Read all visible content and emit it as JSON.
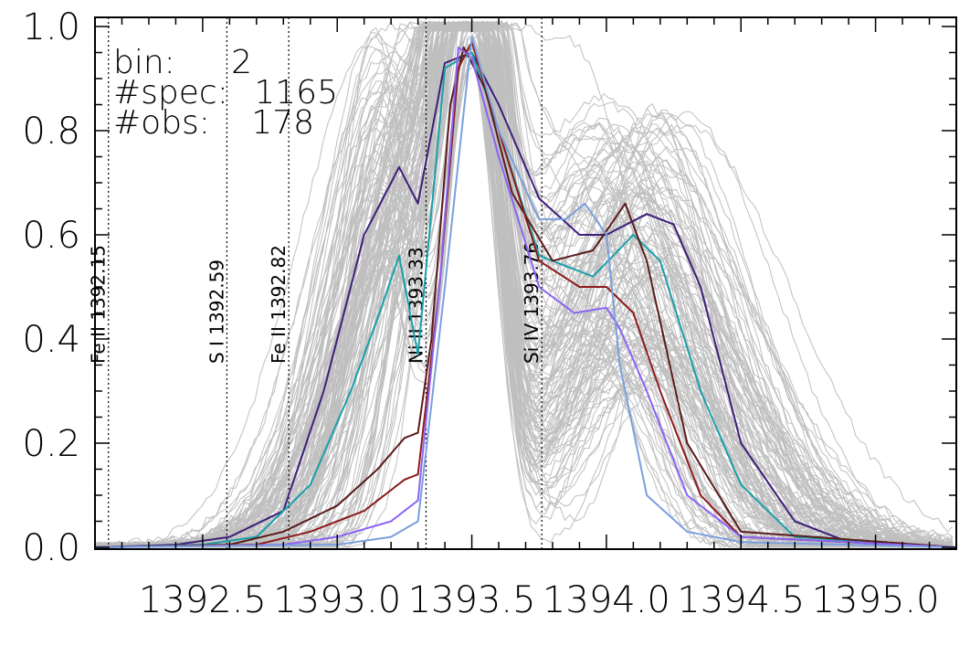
{
  "info": {
    "bin_label": "bin:",
    "bin_value": "2",
    "spec_label": "#spec:",
    "spec_value": "1165",
    "obs_label": "#obs:",
    "obs_value": "178"
  },
  "chart_data": {
    "type": "line",
    "title": "",
    "xlabel": "",
    "ylabel": "",
    "xlim": [
      1392.1,
      1395.3
    ],
    "ylim": [
      0.0,
      1.0
    ],
    "x_ticks": [
      1392.5,
      1393.0,
      1393.5,
      1394.0,
      1394.5,
      1395.0
    ],
    "x_tick_labels": [
      "1392.5",
      "1393.0",
      "1393.5",
      "1394.0",
      "1394.5",
      "1395.0"
    ],
    "y_ticks": [
      0.0,
      0.2,
      0.4,
      0.6,
      0.8,
      1.0
    ],
    "y_tick_labels": [
      "0.0",
      "0.2",
      "0.4",
      "0.6",
      "0.8",
      "1.0"
    ],
    "grid": false,
    "background_color": "#bfbfbf",
    "reference_lines": [
      {
        "x": 1392.15,
        "label": "Fe II 1392.15"
      },
      {
        "x": 1392.59,
        "label": "S I 1392.59"
      },
      {
        "x": 1392.82,
        "label": "Fe II 1392.82"
      },
      {
        "x": 1393.33,
        "label": "Ni II 1393.33"
      },
      {
        "x": 1393.76,
        "label": "Si IV 1393.76"
      }
    ],
    "series": [
      {
        "color": "#3d1e7a",
        "x": [
          1392.1,
          1392.4,
          1392.6,
          1392.8,
          1392.95,
          1393.1,
          1393.23,
          1393.3,
          1393.4,
          1393.5,
          1393.6,
          1393.75,
          1393.9,
          1394.0,
          1394.15,
          1394.25,
          1394.35,
          1394.5,
          1394.7,
          1394.9,
          1395.3
        ],
        "y": [
          0.0,
          0.005,
          0.02,
          0.07,
          0.3,
          0.6,
          0.73,
          0.66,
          0.93,
          0.95,
          0.85,
          0.67,
          0.6,
          0.6,
          0.64,
          0.62,
          0.5,
          0.2,
          0.05,
          0.01,
          0.0
        ]
      },
      {
        "color": "#1a9faa",
        "x": [
          1392.1,
          1392.5,
          1392.7,
          1392.9,
          1393.05,
          1393.15,
          1393.23,
          1393.3,
          1393.4,
          1393.5,
          1393.6,
          1393.75,
          1393.95,
          1394.1,
          1394.2,
          1394.35,
          1394.5,
          1394.7,
          1395.3
        ],
        "y": [
          0.0,
          0.005,
          0.02,
          0.12,
          0.3,
          0.44,
          0.56,
          0.37,
          0.92,
          0.95,
          0.8,
          0.56,
          0.52,
          0.6,
          0.55,
          0.3,
          0.12,
          0.02,
          0.0
        ]
      },
      {
        "color": "#5a1a1a",
        "x": [
          1392.1,
          1392.6,
          1392.8,
          1393.0,
          1393.15,
          1393.25,
          1393.3,
          1393.35,
          1393.42,
          1393.47,
          1393.55,
          1393.65,
          1393.8,
          1393.95,
          1394.07,
          1394.15,
          1394.3,
          1394.5,
          1395.3
        ],
        "y": [
          0.0,
          0.005,
          0.03,
          0.08,
          0.15,
          0.21,
          0.22,
          0.4,
          0.85,
          0.96,
          0.88,
          0.68,
          0.55,
          0.57,
          0.66,
          0.55,
          0.2,
          0.03,
          0.0
        ]
      },
      {
        "color": "#8b1a1a",
        "x": [
          1392.1,
          1392.7,
          1392.9,
          1393.1,
          1393.25,
          1393.3,
          1393.38,
          1393.45,
          1393.5,
          1393.6,
          1393.75,
          1393.9,
          1394.0,
          1394.1,
          1394.2,
          1394.35,
          1394.5,
          1395.3
        ],
        "y": [
          0.0,
          0.005,
          0.03,
          0.07,
          0.13,
          0.14,
          0.5,
          0.92,
          0.97,
          0.8,
          0.55,
          0.5,
          0.5,
          0.45,
          0.3,
          0.1,
          0.02,
          0.0
        ]
      },
      {
        "color": "#8a63f5",
        "x": [
          1392.1,
          1392.8,
          1393.0,
          1393.2,
          1393.3,
          1393.38,
          1393.45,
          1393.5,
          1393.6,
          1393.75,
          1393.88,
          1394.0,
          1394.05,
          1394.15,
          1394.3,
          1394.5,
          1395.3
        ],
        "y": [
          0.0,
          0.005,
          0.02,
          0.05,
          0.09,
          0.5,
          0.96,
          0.94,
          0.75,
          0.5,
          0.45,
          0.46,
          0.42,
          0.3,
          0.1,
          0.02,
          0.0
        ]
      },
      {
        "color": "#7a9fdd",
        "x": [
          1392.1,
          1393.0,
          1393.2,
          1393.3,
          1393.4,
          1393.5,
          1393.6,
          1393.75,
          1393.85,
          1393.92,
          1394.0,
          1394.05,
          1394.15,
          1394.3,
          1394.5,
          1395.3
        ],
        "y": [
          0.0,
          0.005,
          0.02,
          0.05,
          0.5,
          0.98,
          0.8,
          0.63,
          0.63,
          0.66,
          0.6,
          0.35,
          0.1,
          0.03,
          0.01,
          0.0
        ]
      }
    ]
  }
}
